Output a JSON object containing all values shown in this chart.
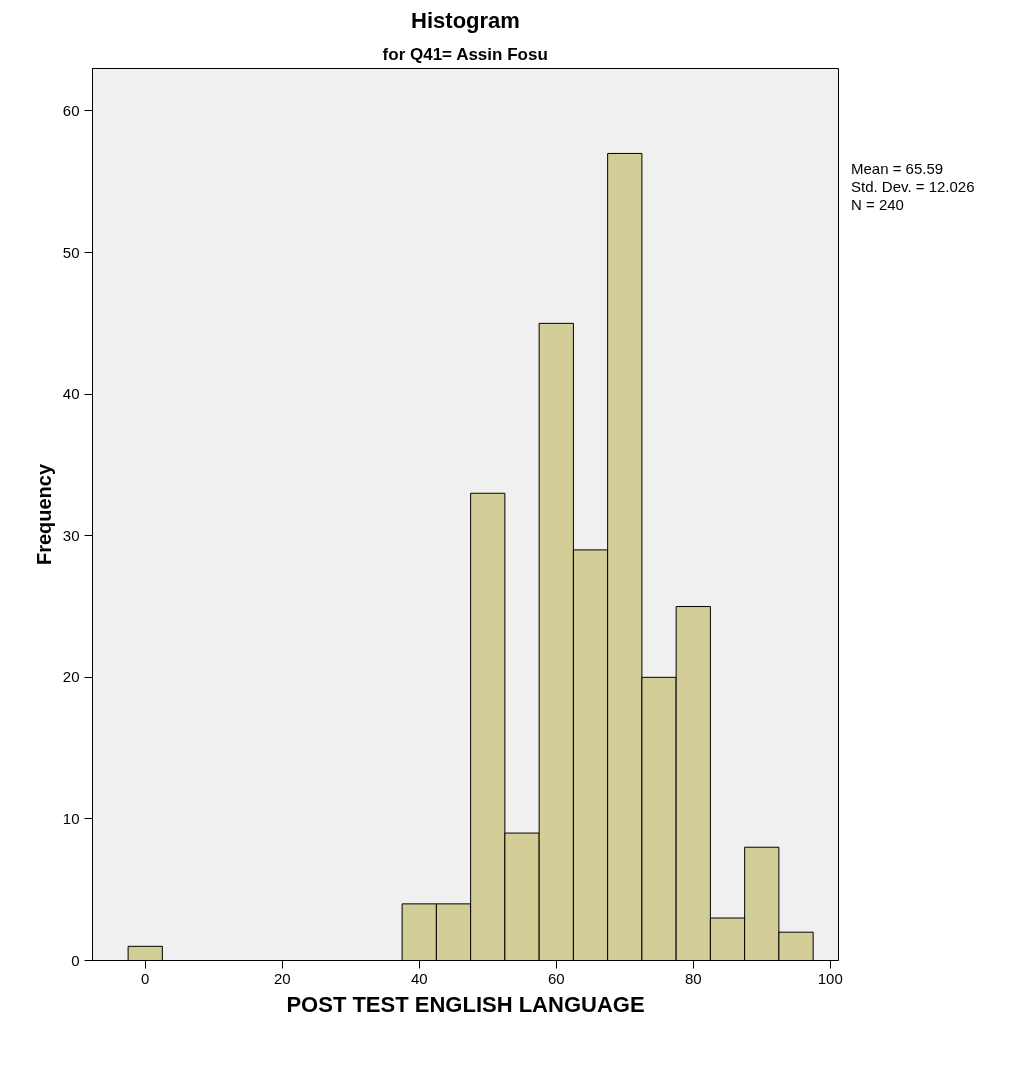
{
  "chart_data": {
    "type": "histogram",
    "title": "Histogram",
    "subtitle": "for Q41= Assin Fosu",
    "xlabel": "POST TEST ENGLISH LANGUAGE",
    "ylabel": "Frequency",
    "bins": [
      -2.5,
      2.5,
      7.5,
      12.5,
      17.5,
      22.5,
      27.5,
      32.5,
      37.5,
      42.5,
      47.5,
      52.5,
      57.5,
      62.5,
      67.5,
      72.5,
      77.5,
      82.5,
      87.5,
      92.5,
      97.5
    ],
    "values": [
      1,
      0,
      0,
      0,
      0,
      0,
      0,
      0,
      4,
      4,
      33,
      9,
      45,
      29,
      57,
      20,
      25,
      3,
      8,
      2
    ],
    "color": "#d3ce98",
    "xlim": [
      -7.7,
      101.2
    ],
    "ylim": [
      0,
      63
    ],
    "xticks": [
      0,
      20,
      40,
      60,
      80,
      100
    ],
    "yticks": [
      0,
      10,
      20,
      30,
      40,
      50,
      60
    ],
    "grid": false,
    "annotations": [
      "Mean = 65.59",
      "Std. Dev. = 12.026",
      "N = 240"
    ]
  }
}
